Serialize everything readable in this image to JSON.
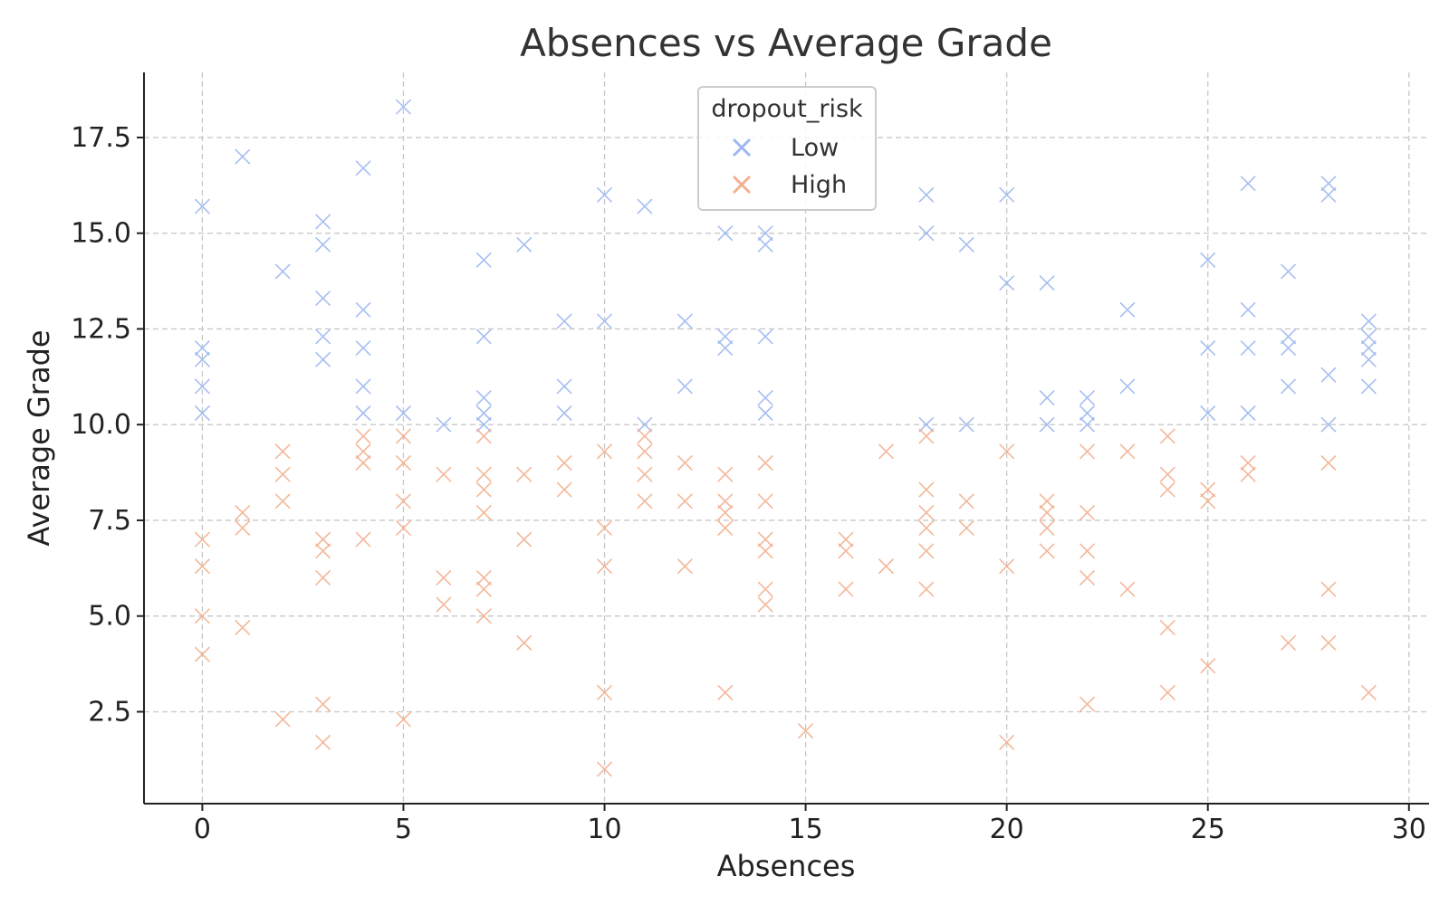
{
  "chart_data": {
    "type": "scatter",
    "title": "Absences vs Average Grade",
    "xlabel": "Absences",
    "ylabel": "Average Grade",
    "xlim": [
      -1.45,
      30.5
    ],
    "ylim": [
      0.1,
      19.2
    ],
    "x_ticks": [
      0,
      5,
      10,
      15,
      20,
      25,
      30
    ],
    "x_tick_labels": [
      "0",
      "5",
      "10",
      "15",
      "20",
      "25",
      "30"
    ],
    "y_ticks": [
      2.5,
      5.0,
      7.5,
      10.0,
      12.5,
      15.0,
      17.5
    ],
    "y_tick_labels": [
      "2.5",
      "5.0",
      "7.5",
      "10.0",
      "12.5",
      "15.0",
      "17.5"
    ],
    "grid": true,
    "marker": "x",
    "legend": {
      "title": "dropout_risk",
      "placement": "top-center"
    },
    "series": [
      {
        "name": "Low",
        "color": "#9db8f0",
        "points": [
          [
            0,
            15.7
          ],
          [
            0,
            12.0
          ],
          [
            0,
            11.7
          ],
          [
            0,
            11.0
          ],
          [
            0,
            10.3
          ],
          [
            1,
            17.0
          ],
          [
            2,
            14.0
          ],
          [
            3,
            15.3
          ],
          [
            3,
            14.7
          ],
          [
            3,
            13.3
          ],
          [
            3,
            12.3
          ],
          [
            3,
            11.7
          ],
          [
            4,
            16.7
          ],
          [
            4,
            13.0
          ],
          [
            4,
            12.0
          ],
          [
            4,
            11.0
          ],
          [
            4,
            10.3
          ],
          [
            5,
            18.3
          ],
          [
            5,
            10.3
          ],
          [
            6,
            10.0
          ],
          [
            7,
            14.3
          ],
          [
            7,
            12.3
          ],
          [
            7,
            10.7
          ],
          [
            7,
            10.3
          ],
          [
            7,
            10.0
          ],
          [
            8,
            14.7
          ],
          [
            9,
            12.7
          ],
          [
            9,
            11.0
          ],
          [
            9,
            10.3
          ],
          [
            10,
            16.0
          ],
          [
            10,
            12.7
          ],
          [
            11,
            15.7
          ],
          [
            11,
            10.0
          ],
          [
            12,
            12.7
          ],
          [
            12,
            11.0
          ],
          [
            13,
            15.0
          ],
          [
            13,
            12.3
          ],
          [
            13,
            12.0
          ],
          [
            14,
            15.0
          ],
          [
            14,
            14.7
          ],
          [
            14,
            12.3
          ],
          [
            14,
            10.7
          ],
          [
            14,
            10.3
          ],
          [
            18,
            16.0
          ],
          [
            18,
            15.0
          ],
          [
            18,
            10.0
          ],
          [
            19,
            14.7
          ],
          [
            19,
            10.0
          ],
          [
            20,
            16.0
          ],
          [
            20,
            13.7
          ],
          [
            21,
            13.7
          ],
          [
            21,
            10.7
          ],
          [
            21,
            10.0
          ],
          [
            22,
            10.7
          ],
          [
            22,
            10.3
          ],
          [
            22,
            10.0
          ],
          [
            23,
            13.0
          ],
          [
            23,
            11.0
          ],
          [
            25,
            14.3
          ],
          [
            25,
            12.0
          ],
          [
            25,
            10.3
          ],
          [
            26,
            16.3
          ],
          [
            26,
            13.0
          ],
          [
            26,
            12.0
          ],
          [
            26,
            10.3
          ],
          [
            27,
            14.0
          ],
          [
            27,
            12.3
          ],
          [
            27,
            12.0
          ],
          [
            27,
            11.0
          ],
          [
            28,
            16.3
          ],
          [
            28,
            16.0
          ],
          [
            28,
            11.3
          ],
          [
            28,
            10.0
          ],
          [
            29,
            12.7
          ],
          [
            29,
            12.3
          ],
          [
            29,
            12.0
          ],
          [
            29,
            11.7
          ],
          [
            29,
            11.0
          ]
        ]
      },
      {
        "name": "High",
        "color": "#f2b08e",
        "points": [
          [
            0,
            7.0
          ],
          [
            0,
            6.3
          ],
          [
            0,
            5.0
          ],
          [
            0,
            4.0
          ],
          [
            1,
            7.7
          ],
          [
            1,
            7.3
          ],
          [
            1,
            4.7
          ],
          [
            2,
            9.3
          ],
          [
            2,
            8.7
          ],
          [
            2,
            8.0
          ],
          [
            2,
            2.3
          ],
          [
            3,
            7.0
          ],
          [
            3,
            6.7
          ],
          [
            3,
            6.0
          ],
          [
            3,
            2.7
          ],
          [
            3,
            1.7
          ],
          [
            4,
            9.7
          ],
          [
            4,
            9.3
          ],
          [
            4,
            9.0
          ],
          [
            4,
            7.0
          ],
          [
            5,
            9.7
          ],
          [
            5,
            9.0
          ],
          [
            5,
            8.0
          ],
          [
            5,
            7.3
          ],
          [
            5,
            2.3
          ],
          [
            6,
            8.7
          ],
          [
            6,
            6.0
          ],
          [
            6,
            5.3
          ],
          [
            7,
            9.7
          ],
          [
            7,
            8.7
          ],
          [
            7,
            8.3
          ],
          [
            7,
            7.7
          ],
          [
            7,
            6.0
          ],
          [
            7,
            5.7
          ],
          [
            7,
            5.0
          ],
          [
            8,
            8.7
          ],
          [
            8,
            7.0
          ],
          [
            8,
            4.3
          ],
          [
            9,
            9.0
          ],
          [
            9,
            8.3
          ],
          [
            10,
            9.3
          ],
          [
            10,
            7.3
          ],
          [
            10,
            6.3
          ],
          [
            10,
            3.0
          ],
          [
            10,
            1.0
          ],
          [
            11,
            9.7
          ],
          [
            11,
            9.3
          ],
          [
            11,
            8.7
          ],
          [
            11,
            8.0
          ],
          [
            12,
            9.0
          ],
          [
            12,
            8.0
          ],
          [
            12,
            6.3
          ],
          [
            13,
            8.7
          ],
          [
            13,
            8.0
          ],
          [
            13,
            7.7
          ],
          [
            13,
            7.3
          ],
          [
            13,
            3.0
          ],
          [
            14,
            9.0
          ],
          [
            14,
            8.0
          ],
          [
            14,
            7.0
          ],
          [
            14,
            6.7
          ],
          [
            14,
            5.7
          ],
          [
            14,
            5.3
          ],
          [
            15,
            2.0
          ],
          [
            16,
            7.0
          ],
          [
            16,
            6.7
          ],
          [
            16,
            5.7
          ],
          [
            17,
            9.3
          ],
          [
            17,
            6.3
          ],
          [
            18,
            9.7
          ],
          [
            18,
            8.3
          ],
          [
            18,
            7.7
          ],
          [
            18,
            7.3
          ],
          [
            18,
            6.7
          ],
          [
            18,
            5.7
          ],
          [
            19,
            8.0
          ],
          [
            19,
            7.3
          ],
          [
            20,
            9.3
          ],
          [
            20,
            6.3
          ],
          [
            20,
            1.7
          ],
          [
            21,
            8.0
          ],
          [
            21,
            7.7
          ],
          [
            21,
            7.3
          ],
          [
            21,
            6.7
          ],
          [
            22,
            9.3
          ],
          [
            22,
            7.7
          ],
          [
            22,
            6.7
          ],
          [
            22,
            6.0
          ],
          [
            22,
            2.7
          ],
          [
            23,
            9.3
          ],
          [
            23,
            5.7
          ],
          [
            24,
            9.7
          ],
          [
            24,
            8.7
          ],
          [
            24,
            8.3
          ],
          [
            24,
            4.7
          ],
          [
            24,
            3.0
          ],
          [
            25,
            8.3
          ],
          [
            25,
            8.0
          ],
          [
            25,
            3.7
          ],
          [
            26,
            9.0
          ],
          [
            26,
            8.7
          ],
          [
            27,
            4.3
          ],
          [
            28,
            9.0
          ],
          [
            28,
            5.7
          ],
          [
            28,
            4.3
          ],
          [
            29,
            3.0
          ]
        ]
      }
    ]
  }
}
